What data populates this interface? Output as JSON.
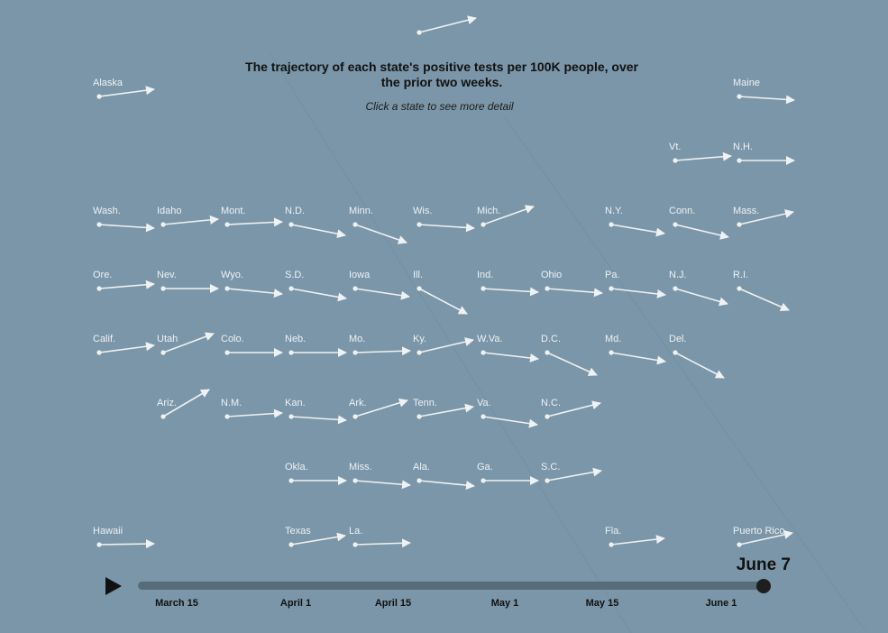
{
  "title": "The trajectory of each state's positive tests per 100K people, over the prior two weeks.",
  "subtitle": "Click a state to see more detail",
  "timeline": {
    "current_date": "June 7",
    "ticks": [
      "March 15",
      "April 1",
      "April 15",
      "May 1",
      "May 15",
      "June 1"
    ],
    "progress": 1.0
  },
  "colors": {
    "background": "#7a96a8",
    "arrow": "#eef2f5",
    "track": "#566c79",
    "knob": "#1e1e1e"
  },
  "chart_data": {
    "type": "small-multiple-arrows",
    "title": "The trajectory of each state's positive tests per 100K people, over the prior two weeks.",
    "grid": false,
    "note": "",
    "states": [
      {
        "name": "",
        "col": 5,
        "row": 0,
        "dx": 63,
        "dy": -16
      },
      {
        "name": "Alaska",
        "col": 0,
        "row": 1,
        "dx": 61,
        "dy": -8
      },
      {
        "name": "Maine",
        "col": 10,
        "row": 1,
        "dx": 61,
        "dy": 4
      },
      {
        "name": "Vt.",
        "col": 9,
        "row": 2,
        "dx": 62,
        "dy": -5
      },
      {
        "name": "N.H.",
        "col": 10,
        "row": 2,
        "dx": 61,
        "dy": 0
      },
      {
        "name": "Wash.",
        "col": 0,
        "row": 3,
        "dx": 61,
        "dy": 4
      },
      {
        "name": "Idaho",
        "col": 1,
        "row": 3,
        "dx": 61,
        "dy": -6
      },
      {
        "name": "Mont.",
        "col": 2,
        "row": 3,
        "dx": 61,
        "dy": -3
      },
      {
        "name": "N.D.",
        "col": 3,
        "row": 3,
        "dx": 60,
        "dy": 12
      },
      {
        "name": "Minn.",
        "col": 4,
        "row": 3,
        "dx": 57,
        "dy": 20
      },
      {
        "name": "Wis.",
        "col": 5,
        "row": 3,
        "dx": 61,
        "dy": 4
      },
      {
        "name": "Mich.",
        "col": 6,
        "row": 3,
        "dx": 56,
        "dy": -20
      },
      {
        "name": "N.Y.",
        "col": 8,
        "row": 3,
        "dx": 59,
        "dy": 10
      },
      {
        "name": "Conn.",
        "col": 9,
        "row": 3,
        "dx": 59,
        "dy": 14
      },
      {
        "name": "Mass.",
        "col": 10,
        "row": 3,
        "dx": 60,
        "dy": -14
      },
      {
        "name": "Ore.",
        "col": 0,
        "row": 4,
        "dx": 61,
        "dy": -5
      },
      {
        "name": "Nev.",
        "col": 1,
        "row": 4,
        "dx": 61,
        "dy": 0
      },
      {
        "name": "Wyo.",
        "col": 2,
        "row": 4,
        "dx": 61,
        "dy": 6
      },
      {
        "name": "S.D.",
        "col": 3,
        "row": 4,
        "dx": 61,
        "dy": 11
      },
      {
        "name": "Iowa",
        "col": 4,
        "row": 4,
        "dx": 60,
        "dy": 9
      },
      {
        "name": "Ill.",
        "col": 5,
        "row": 4,
        "dx": 53,
        "dy": 28
      },
      {
        "name": "Ind.",
        "col": 6,
        "row": 4,
        "dx": 61,
        "dy": 4
      },
      {
        "name": "Ohio",
        "col": 7,
        "row": 4,
        "dx": 61,
        "dy": 5
      },
      {
        "name": "Pa.",
        "col": 8,
        "row": 4,
        "dx": 60,
        "dy": 7
      },
      {
        "name": "N.J.",
        "col": 9,
        "row": 4,
        "dx": 58,
        "dy": 17
      },
      {
        "name": "R.I.",
        "col": 10,
        "row": 4,
        "dx": 55,
        "dy": 24
      },
      {
        "name": "Calif.",
        "col": 0,
        "row": 5,
        "dx": 61,
        "dy": -8
      },
      {
        "name": "Utah",
        "col": 1,
        "row": 5,
        "dx": 56,
        "dy": -21
      },
      {
        "name": "Colo.",
        "col": 2,
        "row": 5,
        "dx": 61,
        "dy": 0
      },
      {
        "name": "Neb.",
        "col": 3,
        "row": 5,
        "dx": 61,
        "dy": 0
      },
      {
        "name": "Mo.",
        "col": 4,
        "row": 5,
        "dx": 61,
        "dy": -2
      },
      {
        "name": "Ky.",
        "col": 5,
        "row": 5,
        "dx": 60,
        "dy": -14
      },
      {
        "name": "W.Va.",
        "col": 6,
        "row": 5,
        "dx": 61,
        "dy": 7
      },
      {
        "name": "D.C.",
        "col": 7,
        "row": 5,
        "dx": 55,
        "dy": 25
      },
      {
        "name": "Md.",
        "col": 8,
        "row": 5,
        "dx": 60,
        "dy": 10
      },
      {
        "name": "Del.",
        "col": 9,
        "row": 5,
        "dx": 54,
        "dy": 28
      },
      {
        "name": "Ariz.",
        "col": 1,
        "row": 6,
        "dx": 51,
        "dy": -30
      },
      {
        "name": "N.M.",
        "col": 2,
        "row": 6,
        "dx": 61,
        "dy": -4
      },
      {
        "name": "Kan.",
        "col": 3,
        "row": 6,
        "dx": 61,
        "dy": 4
      },
      {
        "name": "Ark.",
        "col": 4,
        "row": 6,
        "dx": 58,
        "dy": -18
      },
      {
        "name": "Tenn.",
        "col": 5,
        "row": 6,
        "dx": 60,
        "dy": -11
      },
      {
        "name": "Va.",
        "col": 6,
        "row": 6,
        "dx": 60,
        "dy": 9
      },
      {
        "name": "N.C.",
        "col": 7,
        "row": 6,
        "dx": 59,
        "dy": -15
      },
      {
        "name": "Okla.",
        "col": 3,
        "row": 7,
        "dx": 61,
        "dy": 0
      },
      {
        "name": "Miss.",
        "col": 4,
        "row": 7,
        "dx": 61,
        "dy": 5
      },
      {
        "name": "Ala.",
        "col": 5,
        "row": 7,
        "dx": 61,
        "dy": 6
      },
      {
        "name": "Ga.",
        "col": 6,
        "row": 7,
        "dx": 61,
        "dy": 0
      },
      {
        "name": "S.C.",
        "col": 7,
        "row": 7,
        "dx": 60,
        "dy": -11
      },
      {
        "name": "Hawaii",
        "col": 0,
        "row": 8,
        "dx": 61,
        "dy": -1
      },
      {
        "name": "Texas",
        "col": 3,
        "row": 8,
        "dx": 60,
        "dy": -10
      },
      {
        "name": "La.",
        "col": 4,
        "row": 8,
        "dx": 61,
        "dy": -2
      },
      {
        "name": "Fla.",
        "col": 8,
        "row": 8,
        "dx": 59,
        "dy": -7
      },
      {
        "name": "Puerto Rico",
        "col": 10,
        "row": 8,
        "dx": 59,
        "dy": -13
      }
    ]
  }
}
